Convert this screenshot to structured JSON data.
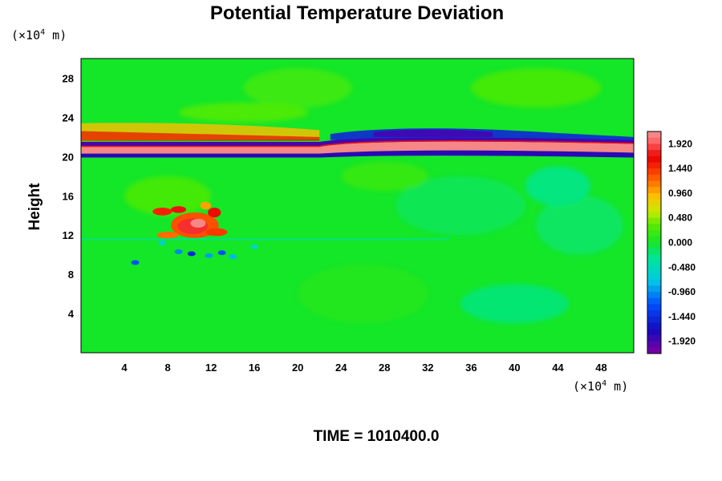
{
  "chart_data": {
    "type": "heatmap",
    "title": "Potential Temperature Deviation",
    "ylabel": "Height",
    "xlabel": "",
    "y_unit": {
      "prefix": "(×10",
      "exp": "4",
      "suffix": " m)"
    },
    "x_unit": {
      "prefix": "(×10",
      "exp": "4",
      "suffix": " m)"
    },
    "footer": "TIME = 1010400.0",
    "xlim": [
      0,
      51
    ],
    "ylim": [
      0,
      30
    ],
    "xticks": [
      4,
      8,
      12,
      16,
      20,
      24,
      28,
      32,
      36,
      40,
      44,
      48
    ],
    "yticks": [
      4,
      8,
      12,
      16,
      20,
      24,
      28
    ],
    "colorbar": {
      "min": -2.16,
      "max": 2.16,
      "labels": [
        "1.920",
        "1.440",
        "0.960",
        "0.480",
        "0.000",
        "-0.480",
        "-0.960",
        "-1.440",
        "-1.920"
      ],
      "label_values": [
        1.92,
        1.44,
        0.96,
        0.48,
        0.0,
        -0.48,
        -0.96,
        -1.44,
        -1.92
      ],
      "colormap": "rainbow (purple-blue-cyan-green-yellow-red-pink)"
    },
    "field": {
      "background": 0.0,
      "bands": [
        {
          "name": "warm band",
          "y": 20.7,
          "value": 2.1
        },
        {
          "name": "cold band upper",
          "y": 21.1,
          "value": -1.9
        },
        {
          "name": "cold band lower",
          "y": 20.2,
          "value": -1.8
        }
      ],
      "features": [
        {
          "name": "warm anomaly",
          "x": 10.5,
          "y": 13.0,
          "value": 1.9
        },
        {
          "name": "cold anomaly",
          "x": 30.0,
          "y": 22.7,
          "value": -1.6
        },
        {
          "name": "cyan streaks",
          "x": 10.0,
          "y": 9.8,
          "value": -0.9
        },
        {
          "name": "warm fringe",
          "x": 12.0,
          "y": 23.0,
          "value": 1.0
        }
      ]
    }
  }
}
